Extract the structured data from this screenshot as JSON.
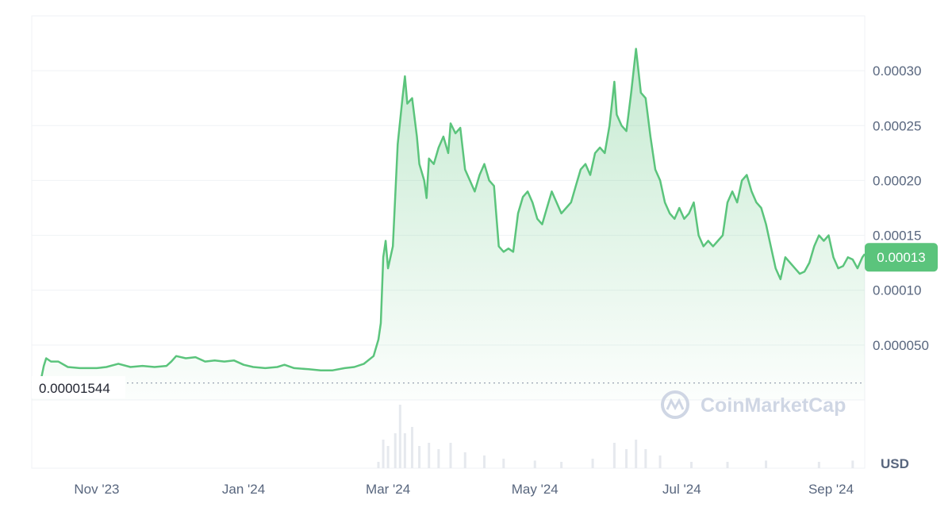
{
  "chart_data": {
    "type": "area",
    "currency_label": "USD",
    "watermark": "CoinMarketCap",
    "current_price_label": "0.00013",
    "min_price_label": "0.00001544",
    "min_price": 1.544e-05,
    "current_price": 0.00013,
    "ylim": [
      0,
      0.00035
    ],
    "yticks": [
      {
        "value": 5e-05,
        "label": "0.000050"
      },
      {
        "value": 0.0001,
        "label": "0.00010"
      },
      {
        "value": 0.00015,
        "label": "0.00015"
      },
      {
        "value": 0.0002,
        "label": "0.00020"
      },
      {
        "value": 0.00025,
        "label": "0.00025"
      },
      {
        "value": 0.0003,
        "label": "0.00030"
      }
    ],
    "xticks": [
      {
        "date": "2023-11-01",
        "label": "Nov '23"
      },
      {
        "date": "2024-01-01",
        "label": "Jan '24"
      },
      {
        "date": "2024-03-01",
        "label": "Mar '24"
      },
      {
        "date": "2024-05-01",
        "label": "May '24"
      },
      {
        "date": "2024-07-01",
        "label": "Jul '24"
      },
      {
        "date": "2024-09-01",
        "label": "Sep '24"
      }
    ],
    "xlim": [
      "2023-10-05",
      "2024-09-15"
    ],
    "colors": {
      "line": "#5bc47c",
      "badge": "#5bc47c",
      "grid": "#eff2f5",
      "volume": "#eff2f5"
    },
    "series": [
      {
        "points": [
          [
            "2023-10-05",
            1.55e-05
          ],
          [
            "2023-10-08",
            1.6e-05
          ],
          [
            "2023-10-09",
            2e-05
          ],
          [
            "2023-10-10",
            3.1e-05
          ],
          [
            "2023-10-11",
            3.8e-05
          ],
          [
            "2023-10-13",
            3.5e-05
          ],
          [
            "2023-10-16",
            3.5e-05
          ],
          [
            "2023-10-20",
            3e-05
          ],
          [
            "2023-10-25",
            2.9e-05
          ],
          [
            "2023-11-01",
            2.9e-05
          ],
          [
            "2023-11-05",
            3e-05
          ],
          [
            "2023-11-10",
            3.3e-05
          ],
          [
            "2023-11-15",
            3e-05
          ],
          [
            "2023-11-20",
            3.1e-05
          ],
          [
            "2023-11-25",
            3e-05
          ],
          [
            "2023-11-30",
            3.1e-05
          ],
          [
            "2023-12-02",
            3.5e-05
          ],
          [
            "2023-12-04",
            4e-05
          ],
          [
            "2023-12-08",
            3.8e-05
          ],
          [
            "2023-12-12",
            3.9e-05
          ],
          [
            "2023-12-16",
            3.5e-05
          ],
          [
            "2023-12-20",
            3.6e-05
          ],
          [
            "2023-12-24",
            3.5e-05
          ],
          [
            "2023-12-28",
            3.6e-05
          ],
          [
            "2024-01-01",
            3.2e-05
          ],
          [
            "2024-01-05",
            3e-05
          ],
          [
            "2024-01-10",
            2.9e-05
          ],
          [
            "2024-01-15",
            3e-05
          ],
          [
            "2024-01-18",
            3.2e-05
          ],
          [
            "2024-01-22",
            2.9e-05
          ],
          [
            "2024-01-28",
            2.8e-05
          ],
          [
            "2024-02-02",
            2.7e-05
          ],
          [
            "2024-02-07",
            2.7e-05
          ],
          [
            "2024-02-12",
            2.9e-05
          ],
          [
            "2024-02-16",
            3e-05
          ],
          [
            "2024-02-20",
            3.3e-05
          ],
          [
            "2024-02-24",
            4e-05
          ],
          [
            "2024-02-26",
            5.5e-05
          ],
          [
            "2024-02-27",
            7e-05
          ],
          [
            "2024-02-28",
            0.00013
          ],
          [
            "2024-02-29",
            0.000145
          ],
          [
            "2024-03-01",
            0.00012
          ],
          [
            "2024-03-03",
            0.00014
          ],
          [
            "2024-03-05",
            0.000233
          ],
          [
            "2024-03-07",
            0.000275
          ],
          [
            "2024-03-08",
            0.000295
          ],
          [
            "2024-03-09",
            0.00027
          ],
          [
            "2024-03-11",
            0.000275
          ],
          [
            "2024-03-13",
            0.00024
          ],
          [
            "2024-03-14",
            0.000215
          ],
          [
            "2024-03-16",
            0.0002
          ],
          [
            "2024-03-17",
            0.000184
          ],
          [
            "2024-03-18",
            0.00022
          ],
          [
            "2024-03-20",
            0.000215
          ],
          [
            "2024-03-22",
            0.00023
          ],
          [
            "2024-03-24",
            0.00024
          ],
          [
            "2024-03-26",
            0.000225
          ],
          [
            "2024-03-27",
            0.000252
          ],
          [
            "2024-03-29",
            0.000243
          ],
          [
            "2024-03-31",
            0.000248
          ],
          [
            "2024-04-02",
            0.00021
          ],
          [
            "2024-04-04",
            0.0002
          ],
          [
            "2024-04-06",
            0.00019
          ],
          [
            "2024-04-08",
            0.000205
          ],
          [
            "2024-04-10",
            0.000215
          ],
          [
            "2024-04-12",
            0.0002
          ],
          [
            "2024-04-14",
            0.000195
          ],
          [
            "2024-04-16",
            0.00014
          ],
          [
            "2024-04-18",
            0.000135
          ],
          [
            "2024-04-20",
            0.000138
          ],
          [
            "2024-04-22",
            0.000135
          ],
          [
            "2024-04-24",
            0.00017
          ],
          [
            "2024-04-26",
            0.000185
          ],
          [
            "2024-04-28",
            0.00019
          ],
          [
            "2024-04-30",
            0.00018
          ],
          [
            "2024-05-02",
            0.000165
          ],
          [
            "2024-05-04",
            0.00016
          ],
          [
            "2024-05-06",
            0.000175
          ],
          [
            "2024-05-08",
            0.00019
          ],
          [
            "2024-05-10",
            0.00018
          ],
          [
            "2024-05-12",
            0.00017
          ],
          [
            "2024-05-14",
            0.000175
          ],
          [
            "2024-05-16",
            0.00018
          ],
          [
            "2024-05-18",
            0.000195
          ],
          [
            "2024-05-20",
            0.00021
          ],
          [
            "2024-05-22",
            0.000215
          ],
          [
            "2024-05-24",
            0.000205
          ],
          [
            "2024-05-26",
            0.000225
          ],
          [
            "2024-05-28",
            0.00023
          ],
          [
            "2024-05-30",
            0.000225
          ],
          [
            "2024-06-01",
            0.00025
          ],
          [
            "2024-06-03",
            0.00029
          ],
          [
            "2024-06-04",
            0.00026
          ],
          [
            "2024-06-06",
            0.00025
          ],
          [
            "2024-06-08",
            0.000245
          ],
          [
            "2024-06-10",
            0.00028
          ],
          [
            "2024-06-12",
            0.00032
          ],
          [
            "2024-06-14",
            0.00028
          ],
          [
            "2024-06-16",
            0.000275
          ],
          [
            "2024-06-18",
            0.00024
          ],
          [
            "2024-06-20",
            0.00021
          ],
          [
            "2024-06-22",
            0.0002
          ],
          [
            "2024-06-24",
            0.00018
          ],
          [
            "2024-06-26",
            0.00017
          ],
          [
            "2024-06-28",
            0.000165
          ],
          [
            "2024-06-30",
            0.000175
          ],
          [
            "2024-07-02",
            0.000165
          ],
          [
            "2024-07-04",
            0.00017
          ],
          [
            "2024-07-06",
            0.00018
          ],
          [
            "2024-07-08",
            0.00015
          ],
          [
            "2024-07-10",
            0.00014
          ],
          [
            "2024-07-12",
            0.000145
          ],
          [
            "2024-07-14",
            0.00014
          ],
          [
            "2024-07-16",
            0.000145
          ],
          [
            "2024-07-18",
            0.00015
          ],
          [
            "2024-07-20",
            0.00018
          ],
          [
            "2024-07-22",
            0.00019
          ],
          [
            "2024-07-24",
            0.00018
          ],
          [
            "2024-07-26",
            0.0002
          ],
          [
            "2024-07-28",
            0.000205
          ],
          [
            "2024-07-30",
            0.00019
          ],
          [
            "2024-08-01",
            0.00018
          ],
          [
            "2024-08-03",
            0.000175
          ],
          [
            "2024-08-05",
            0.00016
          ],
          [
            "2024-08-07",
            0.00014
          ],
          [
            "2024-08-09",
            0.00012
          ],
          [
            "2024-08-11",
            0.00011
          ],
          [
            "2024-08-13",
            0.00013
          ],
          [
            "2024-08-15",
            0.000125
          ],
          [
            "2024-08-17",
            0.00012
          ],
          [
            "2024-08-19",
            0.000115
          ],
          [
            "2024-08-21",
            0.000117
          ],
          [
            "2024-08-23",
            0.000125
          ],
          [
            "2024-08-25",
            0.00014
          ],
          [
            "2024-08-27",
            0.00015
          ],
          [
            "2024-08-29",
            0.000145
          ],
          [
            "2024-08-31",
            0.00015
          ],
          [
            "2024-09-02",
            0.00013
          ],
          [
            "2024-09-04",
            0.00012
          ],
          [
            "2024-09-06",
            0.000122
          ],
          [
            "2024-09-08",
            0.00013
          ],
          [
            "2024-09-10",
            0.000128
          ],
          [
            "2024-09-12",
            0.00012
          ],
          [
            "2024-09-14",
            0.00013
          ],
          [
            "2024-09-15",
            0.000133
          ]
        ]
      }
    ],
    "volume": [
      [
        "2024-02-26",
        0.1
      ],
      [
        "2024-02-28",
        0.45
      ],
      [
        "2024-03-01",
        0.35
      ],
      [
        "2024-03-04",
        0.55
      ],
      [
        "2024-03-06",
        1.0
      ],
      [
        "2024-03-08",
        0.55
      ],
      [
        "2024-03-11",
        0.65
      ],
      [
        "2024-03-14",
        0.35
      ],
      [
        "2024-03-18",
        0.4
      ],
      [
        "2024-03-22",
        0.3
      ],
      [
        "2024-03-27",
        0.4
      ],
      [
        "2024-04-02",
        0.25
      ],
      [
        "2024-04-10",
        0.2
      ],
      [
        "2024-04-18",
        0.15
      ],
      [
        "2024-05-01",
        0.12
      ],
      [
        "2024-05-12",
        0.1
      ],
      [
        "2024-05-25",
        0.15
      ],
      [
        "2024-06-03",
        0.4
      ],
      [
        "2024-06-08",
        0.3
      ],
      [
        "2024-06-12",
        0.45
      ],
      [
        "2024-06-16",
        0.3
      ],
      [
        "2024-06-22",
        0.2
      ],
      [
        "2024-07-05",
        0.1
      ],
      [
        "2024-07-20",
        0.1
      ],
      [
        "2024-08-05",
        0.12
      ],
      [
        "2024-08-27",
        0.1
      ],
      [
        "2024-09-10",
        0.12
      ]
    ]
  }
}
